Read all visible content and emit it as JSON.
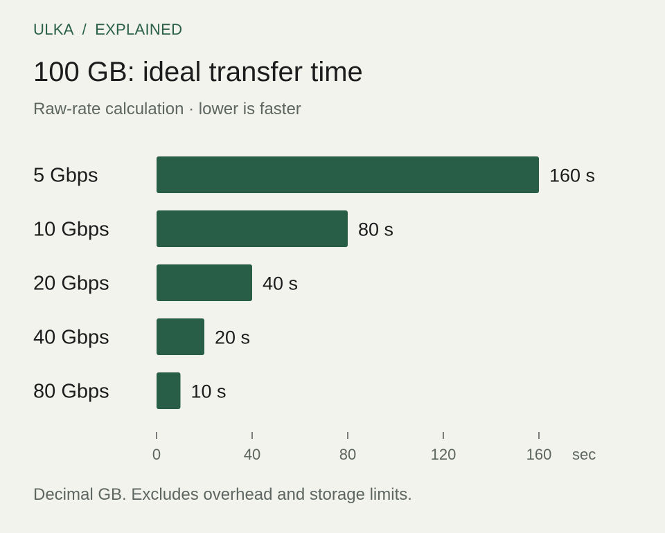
{
  "breadcrumb": {
    "brand": "ULKA",
    "separator": "/",
    "section": "EXPLAINED"
  },
  "title": "100 GB: ideal transfer time",
  "subtitle": "Raw-rate calculation · lower is faster",
  "footnote": "Decimal GB. Excludes overhead and storage limits.",
  "colors": {
    "bar": "#285e48",
    "accent": "#2a6048",
    "background": "#f3f3ee"
  },
  "chart_data": {
    "type": "bar",
    "orientation": "horizontal",
    "categories": [
      "5 Gbps",
      "10 Gbps",
      "20 Gbps",
      "40 Gbps",
      "80 Gbps"
    ],
    "values": [
      160,
      80,
      40,
      20,
      10
    ],
    "value_labels": [
      "160 s",
      "80 s",
      "40 s",
      "20 s",
      "10 s"
    ],
    "x_ticks": [
      0,
      40,
      80,
      120,
      160
    ],
    "x_tick_labels": [
      "0",
      "40",
      "80",
      "120",
      "160"
    ],
    "x_unit": "sec",
    "xlim": [
      0,
      160
    ],
    "grid": false,
    "legend": "none"
  }
}
